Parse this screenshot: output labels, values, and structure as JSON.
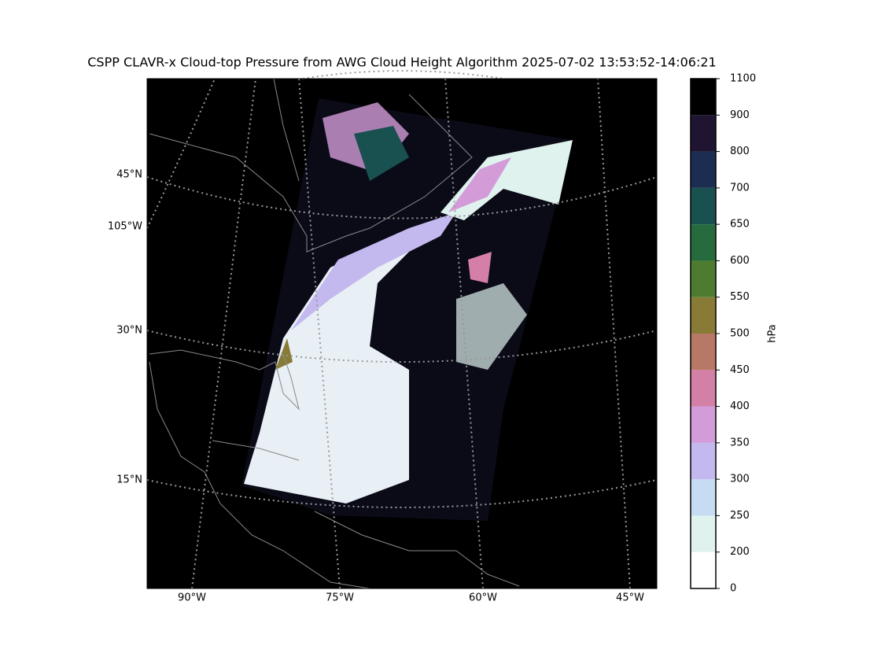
{
  "title": "CSPP CLAVR-x Cloud-top Pressure from AWG Cloud Height Algorithm 2025-07-02 13:53:52-14:06:21",
  "map": {
    "lat_labels": [
      "45°N",
      "105°W",
      "30°N",
      "15°N"
    ],
    "lon_labels": [
      "90°W",
      "75°W",
      "60°W",
      "45°W"
    ]
  },
  "colorbar": {
    "label": "hPa",
    "boundaries": [
      0,
      200,
      250,
      300,
      350,
      400,
      450,
      500,
      550,
      600,
      650,
      700,
      800,
      900,
      1100
    ],
    "colors": [
      "#ffffff",
      "#dff2ee",
      "#c6dcf2",
      "#c4b9ef",
      "#d39bd8",
      "#d47fa5",
      "#b87866",
      "#887b36",
      "#4d7c30",
      "#256b3d",
      "#18514f",
      "#1c2d52",
      "#1f1530",
      "#000000"
    ]
  }
}
